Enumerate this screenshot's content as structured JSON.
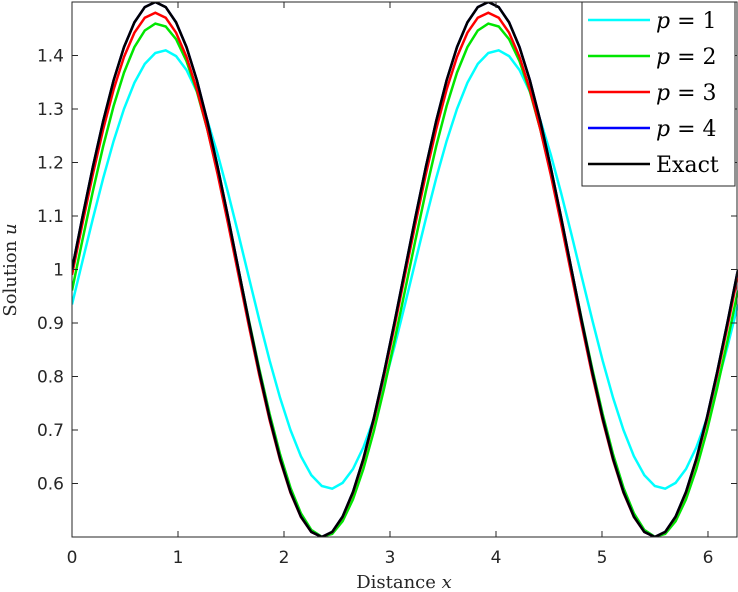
{
  "chart_data": {
    "type": "line",
    "xlabel": "Distance",
    "xlabel_var": "x",
    "ylabel": "Solution",
    "ylabel_var": "u",
    "xlim": [
      0,
      6.2832
    ],
    "ylim": [
      0.5,
      1.5
    ],
    "xticks": [
      0,
      1,
      2,
      3,
      4,
      5,
      6
    ],
    "xtick_labels": [
      "0",
      "1",
      "2",
      "3",
      "4",
      "5",
      "6"
    ],
    "yticks": [
      0.6,
      0.7,
      0.8,
      0.9,
      1.0,
      1.1,
      1.2,
      1.3,
      1.4
    ],
    "ytick_labels": [
      "0.6",
      "0.7",
      "0.8",
      "0.9",
      "1",
      "1.1",
      "1.2",
      "1.3",
      "1.4"
    ],
    "grid": false,
    "legend_position": "top-right",
    "series": [
      {
        "name": "p = 1",
        "name_var": "p",
        "name_op": "=",
        "name_val": "1",
        "color": "#00ffff",
        "amplitude": 0.41,
        "x_shift": 0.08,
        "offset": 0.0
      },
      {
        "name": "p = 2",
        "name_var": "p",
        "name_op": "=",
        "name_val": "2",
        "color": "#00e600",
        "amplitude": 0.48,
        "x_shift": 0.02,
        "offset": -0.02
      },
      {
        "name": "p = 3",
        "name_var": "p",
        "name_op": "=",
        "name_val": "3",
        "color": "#ff0000",
        "amplitude": 0.49,
        "x_shift": 0.0,
        "offset": -0.01
      },
      {
        "name": "p = 4",
        "name_var": "p",
        "name_op": "=",
        "name_val": "4",
        "color": "#0000ff",
        "amplitude": 0.5,
        "x_shift": 0.0,
        "offset": 0.0
      },
      {
        "name": "Exact",
        "color": "#000000",
        "amplitude": 0.5,
        "x_shift": 0.0,
        "offset": 0.0
      }
    ]
  }
}
